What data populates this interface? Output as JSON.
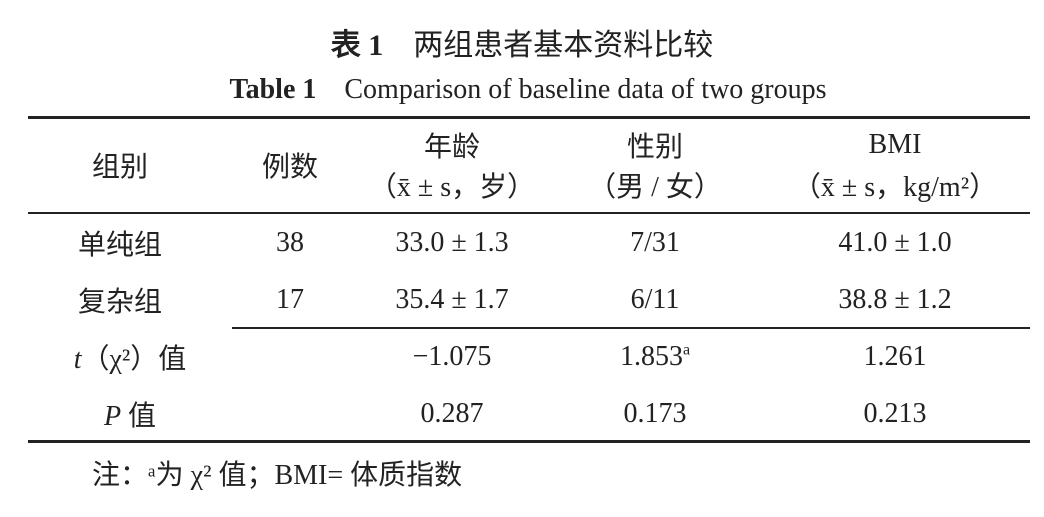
{
  "caption": {
    "zh_label": "表 1",
    "zh_title": "两组患者基本资料比较",
    "en_label": "Table 1",
    "en_title": "Comparison of baseline data of two groups"
  },
  "table": {
    "header": [
      {
        "label": "组别"
      },
      {
        "label": "例数"
      },
      {
        "label": "年龄",
        "unit": "（x̄ ± s，岁）"
      },
      {
        "label": "性别",
        "unit": "（男 / 女）"
      },
      {
        "label": "BMI",
        "unit": "（x̄ ± s，kg/m²）"
      }
    ],
    "rows": [
      [
        "单纯组",
        "38",
        "33.0 ± 1.3",
        "7/31",
        "41.0 ± 1.0"
      ],
      [
        "复杂组",
        "17",
        "35.4 ± 1.7",
        "6/11",
        "38.8 ± 1.2"
      ]
    ],
    "stats": [
      {
        "symbol": "t",
        "label": "（χ²）值",
        "values": [
          "−1.075",
          "1.853",
          "1.261"
        ],
        "marks": [
          null,
          "a",
          null
        ]
      },
      {
        "symbol": "P",
        "label": " 值",
        "values": [
          "0.287",
          "0.173",
          "0.213"
        ],
        "marks": [
          null,
          null,
          null
        ]
      }
    ]
  },
  "note": "注：ᵃ为 χ² 值；BMI= 体质指数"
}
